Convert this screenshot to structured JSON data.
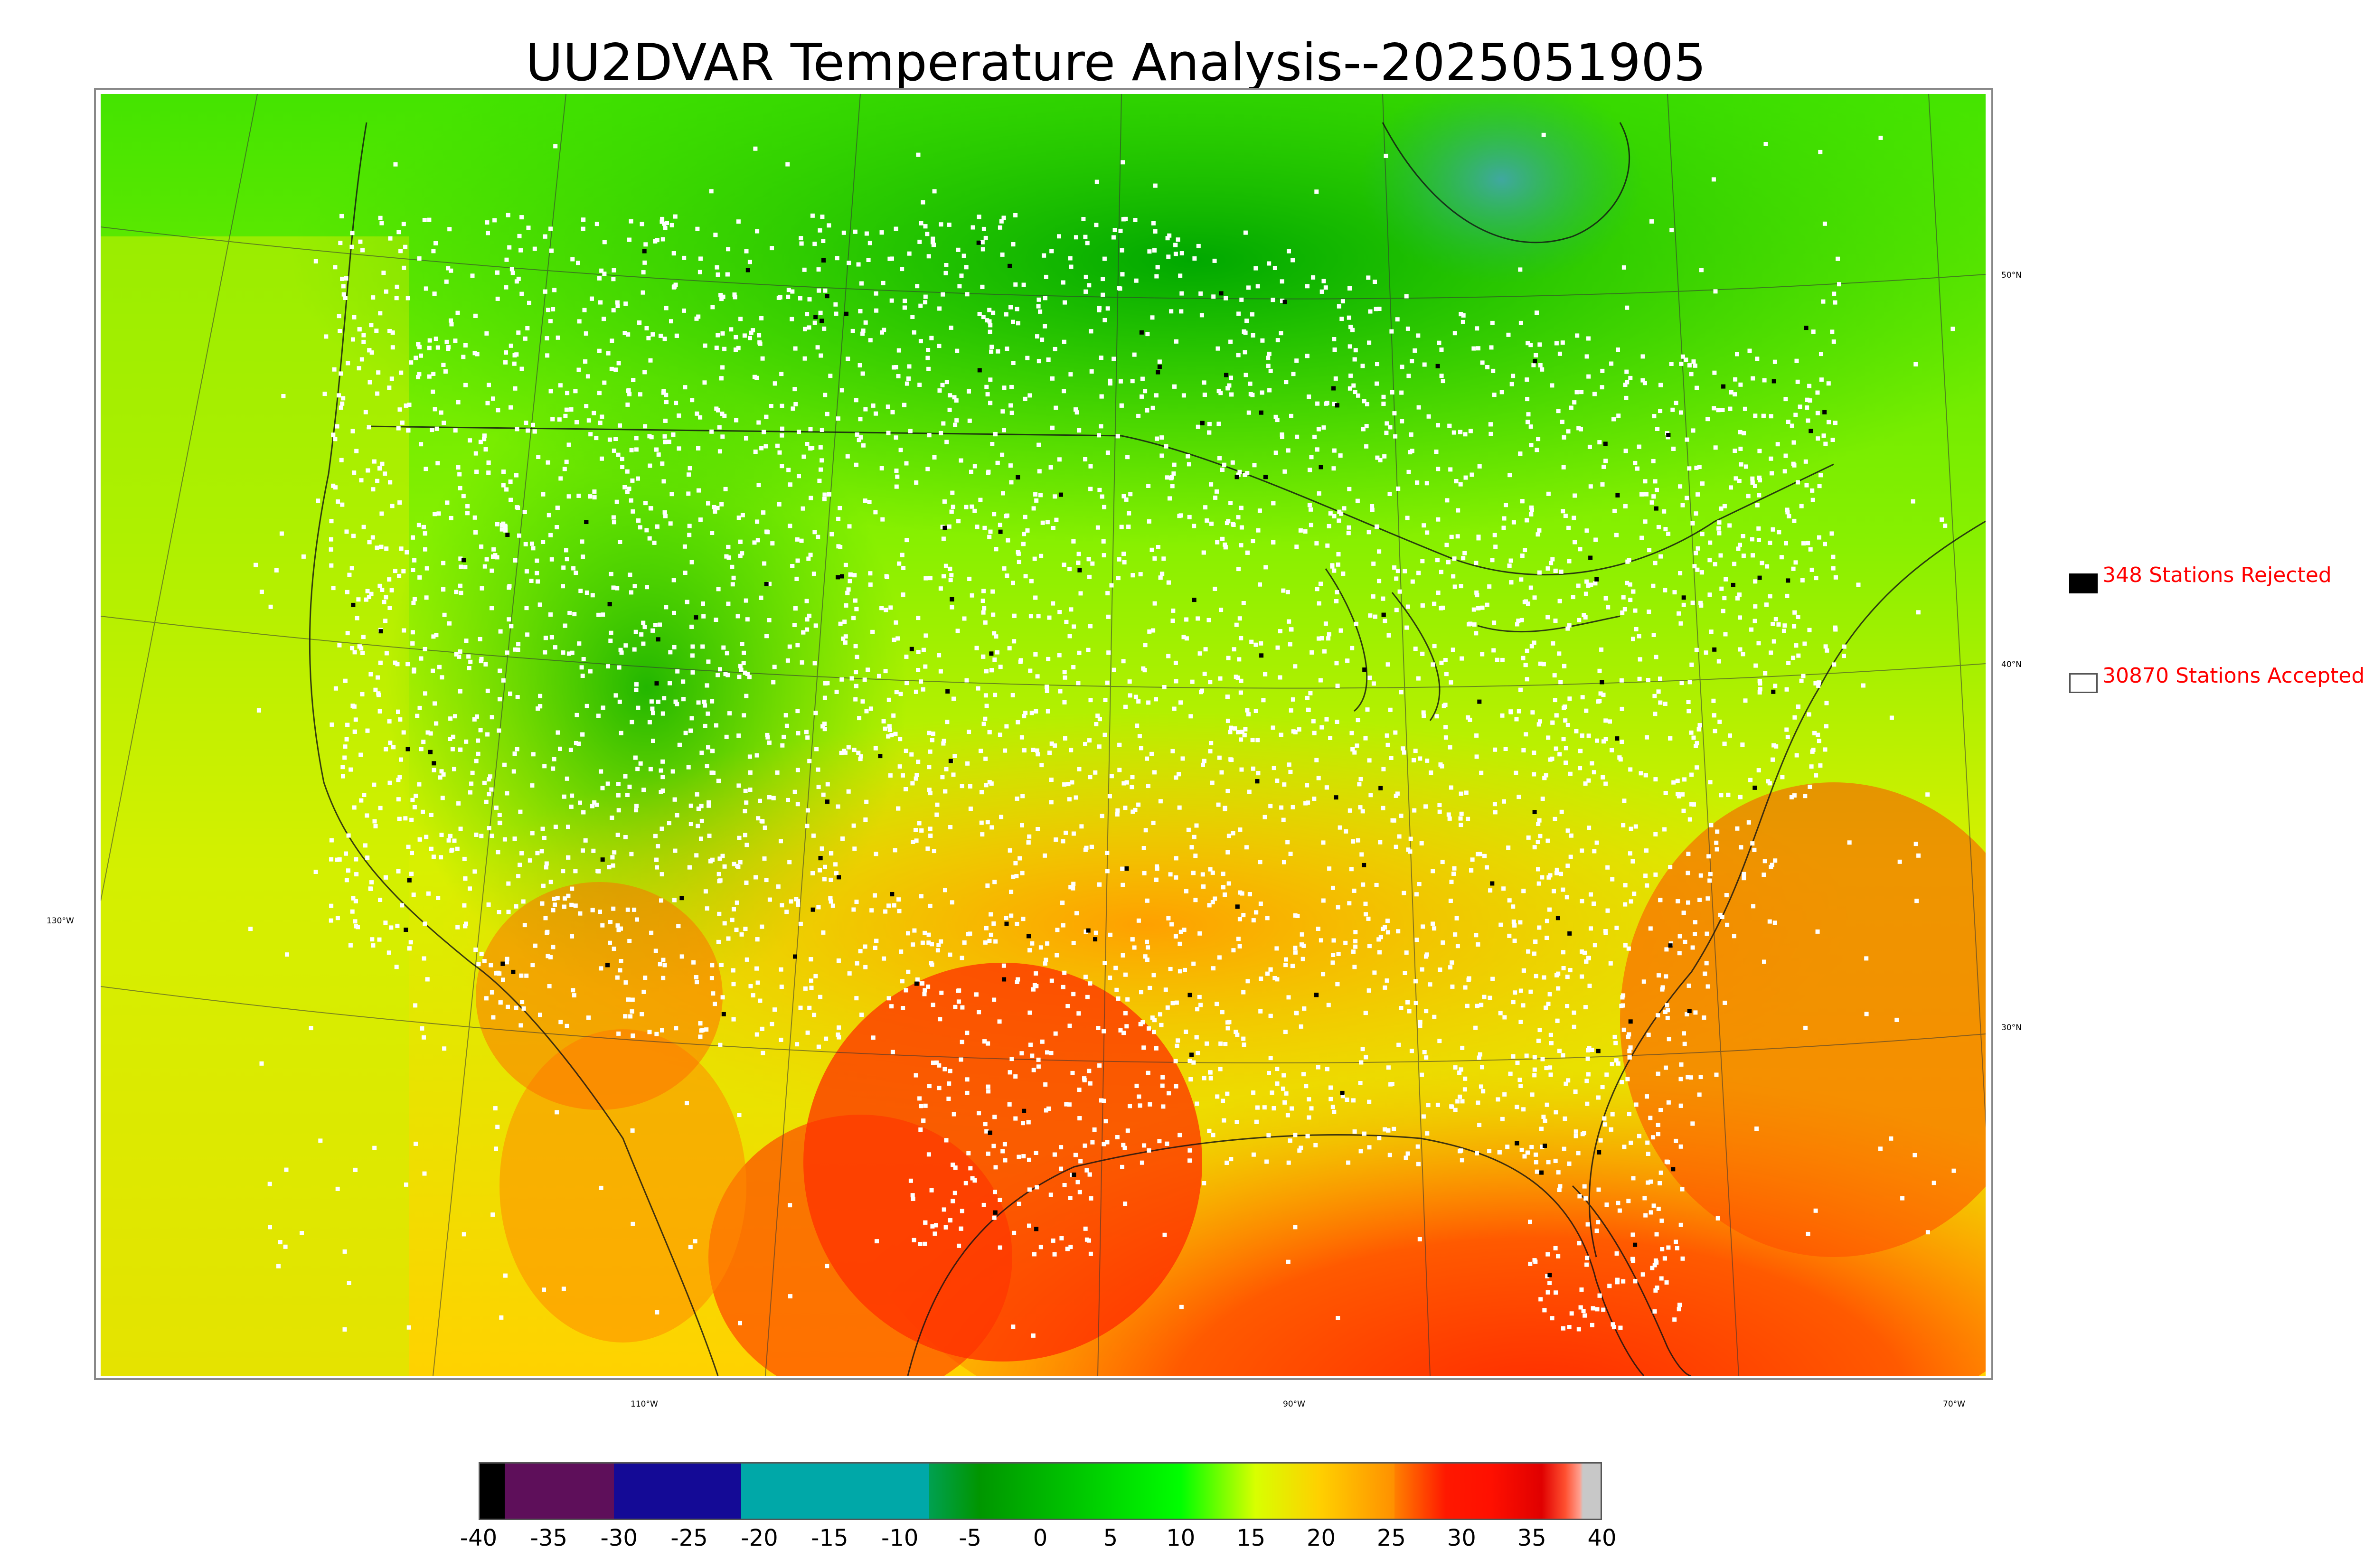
{
  "title": "UU2DVAR Temperature Analysis--2025051905",
  "lat_labels": [
    "50°N",
    "40°N",
    "30°N"
  ],
  "lon_labels": [
    "130°W",
    "110°W",
    "90°W",
    "70°W"
  ],
  "legend": {
    "rejected": "348 Stations Rejected",
    "accepted": "30870 Stations Accepted"
  },
  "colorbar": {
    "min": -40,
    "max": 40,
    "ticks": [
      "-40",
      "-35",
      "-30",
      "-25",
      "-20",
      "-15",
      "-10",
      "-5",
      "0",
      "5",
      "10",
      "15",
      "20",
      "25",
      "30",
      "35",
      "40"
    ],
    "colors": {
      "very_cold": "#000000",
      "minus35": "#5e0f5a",
      "minus30": "#140a96",
      "minus20": "#00a8a8",
      "minus5": "#009600",
      "plus10": "#00ff00",
      "plus15": "#d8ff00",
      "plus20": "#ffc800",
      "plus25": "#ff8800",
      "plus30": "#ff1800",
      "plus35": "#e00000",
      "max": "#c8c8c8"
    }
  },
  "colors": {
    "station_accepted": "#ffffff",
    "station_rejected": "#000000",
    "legend_text": "#ff0000"
  }
}
